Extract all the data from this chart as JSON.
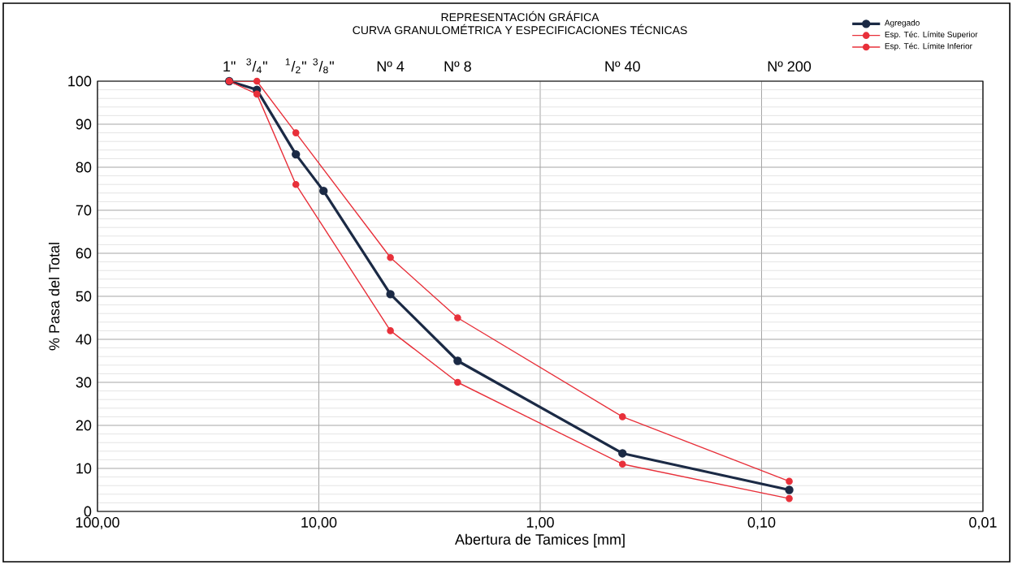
{
  "chart_data": {
    "type": "line",
    "title": "REPRESENTACIÓN GRÁFICA",
    "subtitle": "CURVA GRANULOMÉTRICA Y ESPECIFICACIONES TÉCNICAS",
    "xlabel": "Abertura de Tamices [mm]",
    "ylabel": "% Pasa del Total",
    "log": "x",
    "grid": true,
    "legend": "top right",
    "marker": "circle",
    "line_style": "solid",
    "xlim": [
      100,
      0.01
    ],
    "ylim": [
      0,
      100
    ],
    "xticks": [
      {
        "value": 100,
        "label": "100,00"
      },
      {
        "value": 10,
        "label": "10,00"
      },
      {
        "value": 1,
        "label": "1,00"
      },
      {
        "value": 0.1,
        "label": "0,10"
      },
      {
        "value": 0.01,
        "label": "0,01"
      }
    ],
    "yticks": [
      0,
      10,
      20,
      30,
      40,
      50,
      60,
      70,
      80,
      90,
      100
    ],
    "annotations": [
      "1\"",
      "$^{3}$/$_{4}$\"",
      "$^{1}$/$_{2}$\"",
      "$^{3}$/$_{8}$\"",
      "Nº 4",
      "Nº 8",
      "Nº 40",
      "Nº 200"
    ],
    "series": [
      {
        "name": "Agregado",
        "color": "#1b2a45",
        "x": [
          25.4,
          19.05,
          12.7,
          9.525,
          4.75,
          2.36,
          0.425,
          0.075
        ],
        "values": [
          100,
          98,
          83,
          74.5,
          50.5,
          35,
          13.5,
          5
        ]
      },
      {
        "name": "Esp. Téc. Límite Superior",
        "color": "#e8303a",
        "x": [
          25.4,
          19.05,
          12.7,
          4.75,
          2.36,
          0.425,
          0.075
        ],
        "values": [
          100,
          100,
          88,
          59,
          45,
          22,
          7
        ]
      },
      {
        "name": "Esp. Téc. Límite Inferior",
        "color": "#e8303a",
        "x": [
          25.4,
          19.05,
          12.7,
          4.75,
          2.36,
          0.425,
          0.075
        ],
        "values": [
          100,
          97,
          76,
          42,
          30,
          11,
          3
        ]
      }
    ]
  }
}
